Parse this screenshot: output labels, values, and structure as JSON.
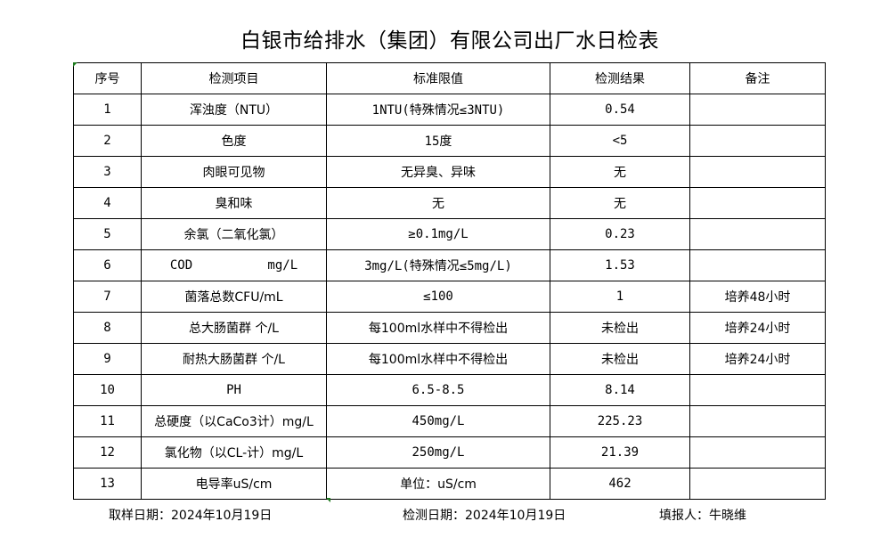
{
  "title": "白银市给排水（集团）有限公司出厂水日检表",
  "table": {
    "headers": [
      "序号",
      "检测项目",
      "标准限值",
      "检测结果",
      "备注"
    ],
    "rows": [
      [
        "1",
        "浑浊度（NTU）",
        "1NTU(特殊情况≤3NTU)",
        "0.54",
        ""
      ],
      [
        "2",
        "色度",
        "15度",
        "<5",
        ""
      ],
      [
        "3",
        "肉眼可见物",
        "无异臭、异味",
        "无",
        ""
      ],
      [
        "4",
        "臭和味",
        "无",
        "无",
        ""
      ],
      [
        "5",
        "余氯（二氧化氯）",
        "≥0.1mg/L",
        "0.23",
        ""
      ],
      [
        "6",
        "COD          mg/L",
        "3mg/L(特殊情况≤5mg/L)",
        "1.53",
        ""
      ],
      [
        "7",
        "菌落总数CFU/mL",
        "≤100",
        "1",
        "培养48小时"
      ],
      [
        "8",
        "总大肠菌群 个/L",
        "每100ml水样中不得检出",
        "未检出",
        "培养24小时"
      ],
      [
        "9",
        "耐热大肠菌群 个/L",
        "每100ml水样中不得检出",
        "未检出",
        "培养24小时"
      ],
      [
        "10",
        "PH",
        "6.5-8.5",
        "8.14",
        ""
      ],
      [
        "11",
        "总硬度（以CaCo3计）mg/L",
        "450mg/L",
        "225.23",
        ""
      ],
      [
        "12",
        "氯化物（以CL-计）mg/L",
        "250mg/L",
        "21.39",
        ""
      ],
      [
        "13",
        "电导率uS/cm",
        "单位：uS/cm",
        "462",
        ""
      ]
    ]
  },
  "footer": {
    "sampling_date": "取样日期：2024年10月19日",
    "test_date": "检测日期：2024年10月19日",
    "reporter": "填报人：牛晓维"
  },
  "colors": {
    "cell_marker": "#1e7b1e"
  }
}
